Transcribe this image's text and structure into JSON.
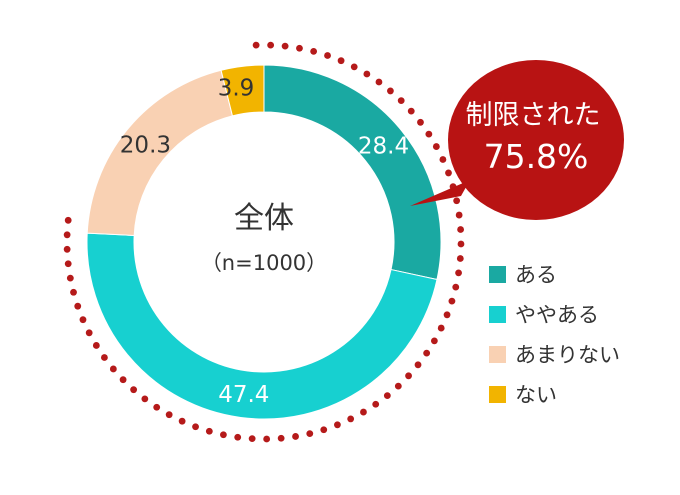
{
  "chart_data": {
    "type": "pie",
    "center_title": "全体",
    "center_subtitle": "（n=1000）",
    "categories": [
      "ある",
      "ややある",
      "あまりない",
      "ない"
    ],
    "values": [
      28.4,
      47.4,
      20.3,
      3.9
    ],
    "value_labels": [
      "28.4",
      "47.4",
      "20.3",
      "3.9"
    ],
    "colors": [
      "#1aa9a2",
      "#17d0d0",
      "#f9d1b3",
      "#f2b400"
    ],
    "label_colors": [
      "#ffffff",
      "#ffffff",
      "#333333",
      "#333333"
    ],
    "legend_position": "right",
    "callout": {
      "line1": "制限された",
      "line2": "75.8%",
      "color": "#b81313"
    },
    "highlight_ring_color": "#b51a1a"
  }
}
